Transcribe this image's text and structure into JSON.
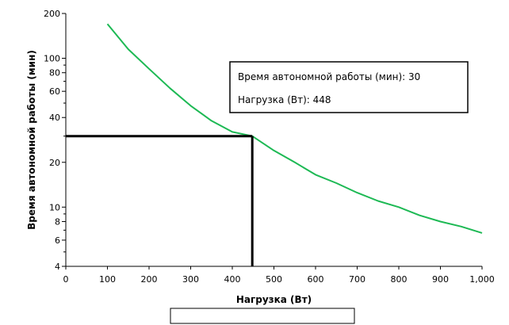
{
  "chart_data": {
    "type": "line",
    "title": "",
    "xlabel": "Нагрузка (Вт)",
    "ylabel": "Время автономной работы (мин)",
    "x_scale": "linear",
    "y_scale": "log",
    "xlim": [
      0,
      1000
    ],
    "ylim": [
      4,
      200
    ],
    "x_ticks": [
      0,
      100,
      200,
      300,
      400,
      500,
      600,
      700,
      800,
      900,
      1000
    ],
    "x_tick_labels": [
      "0",
      "100",
      "200",
      "300",
      "400",
      "500",
      "600",
      "700",
      "800",
      "900",
      "1,000"
    ],
    "y_ticks": [
      4,
      6,
      8,
      10,
      20,
      40,
      60,
      80,
      100,
      200
    ],
    "y_tick_labels": [
      "4",
      "6",
      "8",
      "10",
      "20",
      "40",
      "60",
      "80",
      "100",
      "200"
    ],
    "grid": false,
    "legend": "none",
    "series": [
      {
        "color": "#1db954",
        "x": [
          100,
          150,
          200,
          250,
          300,
          350,
          400,
          448,
          500,
          550,
          600,
          650,
          700,
          750,
          800,
          850,
          900,
          950,
          1000
        ],
        "values": [
          170,
          115,
          85,
          63,
          48,
          38,
          32,
          30,
          24,
          20,
          16.5,
          14.5,
          12.5,
          11,
          10,
          8.8,
          8.0,
          7.4,
          6.7
        ]
      }
    ],
    "annotation": {
      "lines": [
        "Время автономной работы (мин): 30",
        "Нагрузка (Вт): 448"
      ],
      "marker_x": 448,
      "marker_y": 30,
      "marker_color": "#000000"
    },
    "text_box": {
      "value": ""
    }
  }
}
